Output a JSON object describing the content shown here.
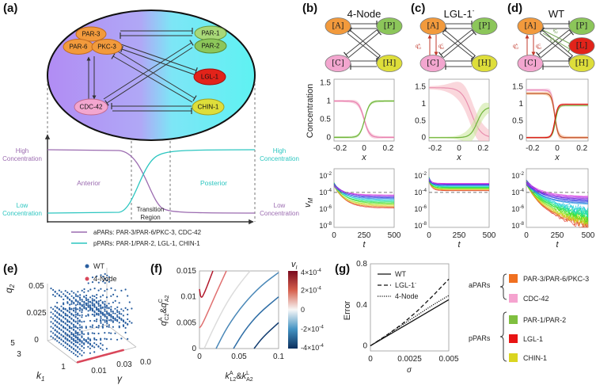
{
  "panel_labels": {
    "a": "(a)",
    "b": "(b)",
    "c": "(c)",
    "d": "(d)",
    "e": "(e)",
    "f": "(f)",
    "g": "(g)"
  },
  "colors": {
    "apar_orange": "#f29a3c",
    "cdc42_pink": "#f3a6cf",
    "ppar_green": "#8cc65a",
    "lgl_red": "#e2231a",
    "chin_yellow": "#dede3a",
    "apar_line": "#9b6bb0",
    "ppar_line": "#2cc6c0",
    "ellipse_left": "#b18cf4",
    "ellipse_right": "#5ef2f2"
  },
  "a": {
    "nodes": {
      "par3": "PAR-3",
      "par6": "PAR-6",
      "pkc3": "PKC-3",
      "par1": "PAR-1",
      "par2": "PAR-2",
      "lgl1": "LGL-1",
      "chin1": "CHIN-1",
      "cdc42": "CDC-42"
    },
    "high_left": [
      "High",
      "Concentration"
    ],
    "low_left": [
      "Low",
      "Concentration"
    ],
    "high_right": [
      "High",
      "Concentration"
    ],
    "low_right": [
      "Low",
      "Concentration"
    ],
    "anterior": "Anterior",
    "posterior": "Posterior",
    "transition": [
      "Transition",
      "Region"
    ],
    "legend": {
      "apars": "aPARs: PAR-3/PAR-6/PKC-3, CDC-42",
      "ppars": "pPARs: PAR-1/PAR-2,  LGL-1, CHIN-1"
    }
  },
  "networks": [
    {
      "title": "4-Node",
      "title_sup": "",
      "nodes": {
        "A": "[A]",
        "P": "[P]",
        "C": "[C]",
        "H": "[H]"
      }
    },
    {
      "title": "LGL-1",
      "title_sup": "-",
      "nodes": {
        "A": "[A]",
        "P": "[P]",
        "C": "[C]",
        "H": "[H]"
      },
      "rates": [
        {
          "base": "q",
          "sup": "A",
          "sub": "C2"
        },
        {
          "base": "q",
          "sup": "C",
          "sub": "A2"
        }
      ]
    },
    {
      "title": "WT",
      "title_sup": "",
      "nodes": {
        "A": "[A]",
        "P": "[P]",
        "C": "[C]",
        "H": "[H]",
        "L": "[L]"
      },
      "rates": [
        {
          "base": "q",
          "sup": "A",
          "sub": "C2"
        },
        {
          "base": "q",
          "sup": "C",
          "sub": "A2"
        }
      ],
      "k_rates": [
        {
          "base": "k",
          "sup": "L",
          "sub": "A2"
        },
        {
          "base": "k",
          "sup": "A",
          "sub": "L2"
        }
      ]
    }
  ],
  "chart_data": {
    "concentration": [
      {
        "panel": "b",
        "type": "line",
        "ylabel": "Concentration",
        "xlabel": "x",
        "xlim": [
          -0.25,
          0.25
        ],
        "ylim": [
          -0.1,
          1.6
        ],
        "xticks": [
          -0.2,
          0,
          0.2
        ],
        "xtick_labels": [
          "-0.2",
          "0",
          "0.2"
        ],
        "yticks": [
          0,
          0.5,
          1,
          1.5
        ],
        "ytick_labels": [
          "0",
          "0.5",
          "1",
          "1.5"
        ],
        "series": [
          {
            "name": "aPAR/CDC-42",
            "color": "#e87fb0",
            "band": "#f4b3c8",
            "from": 1.0,
            "to": 0,
            "center": 0,
            "width": 0.022,
            "spread": 0.05
          },
          {
            "name": "PAR-1/PAR-2",
            "color": "#6fb43a",
            "band": "#bde09a",
            "from": 0,
            "to": 1.0,
            "center": 0.005,
            "width": 0.02,
            "spread": 0.02
          }
        ]
      },
      {
        "panel": "c",
        "type": "line",
        "ylabel": "",
        "xlabel": "x",
        "xlim": [
          -0.25,
          0.25
        ],
        "ylim": [
          -0.1,
          1.72
        ],
        "xticks": [
          -0.2,
          0,
          0.2
        ],
        "xtick_labels": [
          "-0.2",
          "0",
          "0.2"
        ],
        "yticks": [
          0,
          0.5,
          1,
          1.5
        ],
        "ytick_labels": [
          "0",
          "0.5",
          "1",
          "1.5"
        ],
        "series": [
          {
            "name": "aPAR/CDC-42",
            "color": "#e88fae",
            "band": "#f6bcc4",
            "from": 1.47,
            "to": 0,
            "center": 0.1,
            "width": 0.04,
            "spread": 0.35
          },
          {
            "name": "PAR-1/PAR-2",
            "color": "#6fb43a",
            "band": "#cde8a0",
            "from": 0,
            "to": 0.9,
            "center": 0.15,
            "width": 0.028,
            "spread": 0.25
          }
        ]
      },
      {
        "panel": "d",
        "type": "line",
        "ylabel": "",
        "xlabel": "x",
        "xlim": [
          -0.25,
          0.25
        ],
        "ylim": [
          -0.1,
          1.72
        ],
        "xticks": [
          -0.2,
          0,
          0.2
        ],
        "xtick_labels": [
          "-0.2",
          "0",
          "0.2"
        ],
        "yticks": [
          0,
          0.5,
          1,
          1.5
        ],
        "ytick_labels": [
          "0",
          "0.5",
          "1",
          "1.5"
        ],
        "series": [
          {
            "name": "CDC-42",
            "color": "#e87fb0",
            "band": "#f4c0dc",
            "from": 1.4,
            "to": 0,
            "center": -0.02,
            "width": 0.013,
            "spread": 0.08
          },
          {
            "name": "PAR-3/PAR-6/PKC-3",
            "color": "#c0502a",
            "band": "#f8c890",
            "from": 1.3,
            "to": 0,
            "center": -0.02,
            "width": 0.013,
            "spread": 0.08
          },
          {
            "name": "PAR-1/PAR-2",
            "color": "#5fb030",
            "band": "#bde09a",
            "from": 0,
            "to": 0.95,
            "center": -0.015,
            "width": 0.012,
            "spread": 0.03
          },
          {
            "name": "LGL-1",
            "color": "#e01010",
            "band": "#f4a0a0",
            "from": 0,
            "to": 0.98,
            "center": -0.02,
            "width": 0.012,
            "spread": 0.03
          }
        ]
      }
    ],
    "vm": [
      {
        "panel": "b",
        "type": "line",
        "ylabel": "v",
        "ylabel_sub": "M",
        "xlabel": "t",
        "xlim": [
          0,
          500
        ],
        "ylim_log10": [
          -8.2,
          -1.15
        ],
        "threshold": 0.0001,
        "xticks": [
          0,
          250,
          500
        ],
        "xtick_labels": [
          "0",
          "250",
          "500"
        ],
        "ytick_labels": [
          {
            "base": "10",
            "exp": "-2"
          },
          {
            "base": "10",
            "exp": "-4"
          },
          {
            "base": "10",
            "exp": "-6"
          },
          {
            "base": "10",
            "exp": "-8"
          }
        ],
        "yticks_log10": [
          -2,
          -4,
          -6,
          -8
        ],
        "start_log10": -3.0,
        "final_log10_range": [
          -5.9,
          -4.3
        ],
        "noise": 0
      },
      {
        "panel": "c",
        "type": "line",
        "ylabel": "",
        "xlabel": "t",
        "xlim": [
          0,
          500
        ],
        "ylim_log10": [
          -8.2,
          -1.15
        ],
        "threshold": 0.0001,
        "xticks": [
          0,
          250,
          500
        ],
        "xtick_labels": [
          "0",
          "250",
          "500"
        ],
        "ytick_labels": [
          {
            "base": "10",
            "exp": "-2"
          },
          {
            "base": "10",
            "exp": "-4"
          },
          {
            "base": "10",
            "exp": "-6"
          },
          {
            "base": "10",
            "exp": "-8"
          }
        ],
        "yticks_log10": [
          -2,
          -4,
          -6,
          -8
        ],
        "start_log10": -2.4,
        "final_log10_range": [
          -3.8,
          -2.9
        ],
        "noise": 0
      },
      {
        "panel": "d",
        "type": "line",
        "ylabel": "",
        "xlabel": "t",
        "xlim": [
          0,
          500
        ],
        "ylim_log10": [
          -8.2,
          -1.15
        ],
        "threshold": 0.0001,
        "xticks": [
          0,
          250,
          500
        ],
        "xtick_labels": [
          "0",
          "250",
          "500"
        ],
        "ytick_labels": [
          {
            "base": "10",
            "exp": "-2"
          },
          {
            "base": "10",
            "exp": "-4"
          },
          {
            "base": "10",
            "exp": "-6"
          },
          {
            "base": "10",
            "exp": "-8"
          }
        ],
        "yticks_log10": [
          -2,
          -4,
          -6,
          -8
        ],
        "start_log10": -2.8,
        "final_log10_range": [
          -7.5,
          -4.5
        ],
        "noise": 1
      }
    ],
    "scatter3d": {
      "panel": "e",
      "type": "scatter",
      "series": [
        {
          "name": "WT",
          "color": "#2a5fa0"
        },
        {
          "name": "4-Node",
          "color": "#d9475a"
        }
      ],
      "zlabel": "q",
      "zlabel_sub": "2",
      "xlabel": "k",
      "xlabel_sub": "1",
      "ylabel": "γ",
      "zticks": [
        "0",
        "0.025",
        "0.05"
      ],
      "xticks": [
        "1",
        "3",
        "5"
      ],
      "yticks": [
        "0.01",
        "0.03",
        "0.0"
      ],
      "k1_range": [
        1,
        5
      ],
      "gamma_range": [
        0,
        0.05
      ],
      "q2_range": [
        0,
        0.05
      ]
    },
    "contour": {
      "panel": "f",
      "type": "heatmap",
      "xlim": [
        0,
        0.1
      ],
      "ylim": [
        0,
        0.015
      ],
      "xticks": [
        0,
        0.05,
        0.1
      ],
      "xtick_labels": [
        "0",
        "0.05",
        "0.1"
      ],
      "yticks": [
        0,
        0.005,
        0.01,
        0.015
      ],
      "ytick_labels": [
        "0",
        "0.005",
        "0.01",
        "0.015"
      ],
      "xlabel": [
        {
          "base": "k",
          "sup": "A",
          "sub": "L2"
        },
        {
          "base": "k",
          "sup": "L",
          "sub": "A2"
        }
      ],
      "ylabel": [
        {
          "base": "q",
          "sup": "A",
          "sub": "C2"
        },
        {
          "base": "q",
          "sup": "C",
          "sub": "A2"
        }
      ],
      "and": "&",
      "colorbar": {
        "title": "v",
        "title_sub": "I",
        "range": [
          -0.0004,
          0.0004
        ],
        "labels": [
          {
            "base": "4×10",
            "exp": "-4"
          },
          {
            "base": "2×10",
            "exp": "-4"
          },
          {
            "base": "0",
            "exp": ""
          },
          {
            "base": "-2×10",
            "exp": "-4"
          },
          {
            "base": "-4×10",
            "exp": "-4"
          }
        ],
        "values": [
          0.0004,
          0.0002,
          0,
          -0.0002,
          -0.0004
        ]
      },
      "contours": [
        {
          "level": 0.0003,
          "color": "#b2182b",
          "points": [
            [
              0,
              0.0115
            ],
            [
              0.002,
              0.0095
            ],
            [
              0.007,
              0.011
            ],
            [
              0.012,
              0.013
            ],
            [
              0.017,
              0.015
            ]
          ]
        },
        {
          "level": 0.00015,
          "color": "#e07070",
          "points": [
            [
              0,
              0.004
            ],
            [
              0.003,
              0.0045
            ],
            [
              0.012,
              0.0075
            ],
            [
              0.022,
              0.011
            ],
            [
              0.034,
              0.015
            ]
          ]
        },
        {
          "level": 0,
          "color": "#dcdcdc",
          "points": [
            [
              0.006,
              0
            ],
            [
              0.018,
              0.004
            ],
            [
              0.033,
              0.0085
            ],
            [
              0.048,
              0.012
            ],
            [
              0.064,
              0.015
            ]
          ]
        },
        {
          "level": -0.0001,
          "color": "#4a88b8",
          "points": [
            [
              0.021,
              0
            ],
            [
              0.035,
              0.0042
            ],
            [
              0.055,
              0.0085
            ],
            [
              0.078,
              0.0122
            ],
            [
              0.1,
              0.0147
            ]
          ]
        },
        {
          "level": -0.0002,
          "color": "#2f6ea6",
          "points": [
            [
              0.043,
              0
            ],
            [
              0.057,
              0.0035
            ],
            [
              0.075,
              0.0068
            ],
            [
              0.1,
              0.01
            ]
          ]
        },
        {
          "level": -0.0003,
          "color": "#113c70",
          "points": [
            [
              0.069,
              0
            ],
            [
              0.08,
              0.0022
            ],
            [
              0.1,
              0.005
            ]
          ]
        }
      ]
    },
    "error": {
      "panel": "g",
      "type": "line",
      "xlabel": "σ",
      "ylabel": "Error",
      "xlim": [
        0,
        0.005
      ],
      "ylim": [
        -0.05,
        0.8
      ],
      "xticks": [
        0,
        0.0025,
        0.005
      ],
      "xtick_labels": [
        "0",
        "0.0025",
        "0.005"
      ],
      "yticks": [
        0,
        0.4,
        0.8
      ],
      "ytick_labels": [
        "0",
        "0.4",
        "0.8"
      ],
      "series": [
        {
          "name": "WT",
          "name_sup": "",
          "dash": "solid",
          "x": [
            0,
            0.005
          ],
          "y": [
            0,
            0.45
          ]
        },
        {
          "name": "LGL-1",
          "name_sup": "-",
          "dash": "dashed",
          "x": [
            0,
            0.001,
            0.002,
            0.003,
            0.004,
            0.005
          ],
          "y": [
            0,
            0.1,
            0.21,
            0.34,
            0.49,
            0.65
          ]
        },
        {
          "name": "4-Node",
          "name_sup": "",
          "dash": "dotted",
          "x": [
            0,
            0.001,
            0.0015,
            0.002,
            0.003,
            0.004,
            0.005
          ],
          "y": [
            0,
            0.1,
            0.15,
            0.2,
            0.3,
            0.4,
            0.49
          ]
        }
      ]
    }
  },
  "legend_right": {
    "apars": "aPARs",
    "ppars": "pPARs",
    "items": [
      {
        "label": "PAR-3/PAR-6/PKC-3",
        "color": "#f07020"
      },
      {
        "label": "CDC-42",
        "color": "#f5a3cf"
      },
      {
        "label": "PAR-1/PAR-2",
        "color": "#7fbf3f"
      },
      {
        "label": "LGL-1",
        "color": "#e81414"
      },
      {
        "label": "CHIN-1",
        "color": "#dad520"
      }
    ]
  }
}
